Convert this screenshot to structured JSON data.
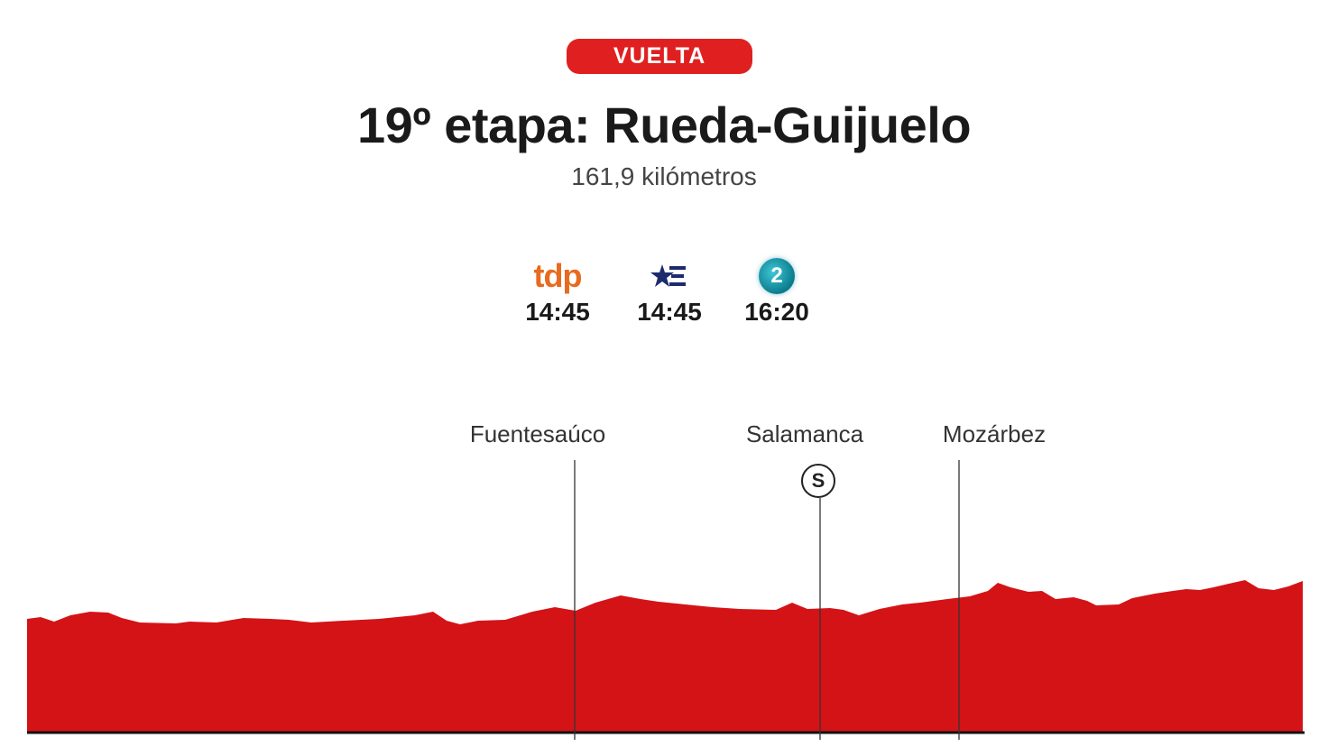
{
  "header": {
    "badge": "VUELTA",
    "title": "19º etapa: Rueda-Guijuelo",
    "subtitle": "161,9 kilómetros"
  },
  "broadcast": [
    {
      "logo": "tdp",
      "icon": "tdp-logo",
      "time": "14:45"
    },
    {
      "logo": "",
      "icon": "eurosport-star-icon",
      "time": "14:45"
    },
    {
      "logo": "2",
      "icon": "la2-logo",
      "time": "16:20"
    }
  ],
  "profile": {
    "colors": {
      "fill": "#d41317",
      "baseline": "#111111"
    },
    "places": [
      {
        "name": "Fuentesaúco"
      },
      {
        "name": "Salamanca",
        "marker": "S"
      },
      {
        "name": "Mozárbez"
      }
    ]
  }
}
